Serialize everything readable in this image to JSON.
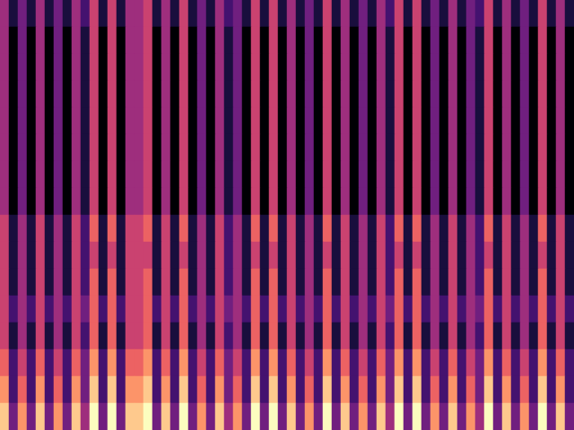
{
  "chart_data": {
    "type": "heatmap",
    "color": "magma",
    "tick_labels": false,
    "grid": false,
    "cells": [
      [
        5,
        2,
        4,
        2,
        5,
        2,
        4,
        2,
        5,
        3,
        6,
        2,
        6,
        2,
        5,
        5,
        6,
        2,
        5,
        2,
        6,
        2,
        4,
        2,
        5,
        3,
        4,
        2,
        6,
        2,
        6,
        2,
        5,
        2,
        4,
        2,
        6,
        2,
        5,
        2,
        4,
        2,
        5,
        3,
        6,
        2,
        6,
        2,
        4,
        2,
        5,
        2,
        4,
        3,
        6,
        2,
        5,
        2,
        4,
        2,
        6,
        2,
        5,
        2
      ],
      [
        5,
        1,
        4,
        1,
        5,
        1,
        4,
        1,
        5,
        2,
        6,
        1,
        6,
        1,
        5,
        5,
        6,
        1,
        5,
        1,
        6,
        1,
        4,
        1,
        5,
        2,
        4,
        1,
        6,
        1,
        6,
        1,
        5,
        1,
        4,
        1,
        6,
        1,
        5,
        1,
        4,
        1,
        5,
        2,
        6,
        1,
        6,
        1,
        4,
        1,
        5,
        1,
        4,
        2,
        6,
        1,
        5,
        1,
        4,
        1,
        6,
        1,
        5,
        1
      ],
      [
        5,
        1,
        4,
        1,
        5,
        1,
        4,
        1,
        5,
        2,
        6,
        1,
        6,
        1,
        5,
        5,
        6,
        1,
        5,
        1,
        6,
        1,
        4,
        1,
        5,
        2,
        4,
        1,
        6,
        1,
        6,
        1,
        5,
        1,
        4,
        1,
        6,
        1,
        5,
        1,
        4,
        1,
        5,
        2,
        6,
        1,
        6,
        1,
        4,
        1,
        5,
        1,
        4,
        2,
        6,
        1,
        5,
        1,
        4,
        1,
        6,
        1,
        5,
        1
      ],
      [
        5,
        1,
        4,
        1,
        5,
        1,
        4,
        1,
        5,
        2,
        6,
        1,
        6,
        1,
        5,
        5,
        6,
        1,
        5,
        1,
        6,
        1,
        4,
        1,
        5,
        2,
        4,
        1,
        6,
        1,
        6,
        1,
        5,
        1,
        4,
        1,
        6,
        1,
        5,
        1,
        4,
        1,
        5,
        2,
        6,
        1,
        6,
        1,
        4,
        1,
        5,
        1,
        4,
        2,
        6,
        1,
        5,
        1,
        4,
        1,
        6,
        1,
        5,
        1
      ],
      [
        5,
        1,
        4,
        1,
        5,
        1,
        4,
        1,
        5,
        2,
        6,
        1,
        6,
        1,
        5,
        5,
        6,
        1,
        5,
        1,
        6,
        1,
        4,
        1,
        5,
        2,
        4,
        1,
        6,
        1,
        6,
        1,
        5,
        1,
        4,
        1,
        6,
        1,
        5,
        1,
        4,
        1,
        5,
        2,
        6,
        1,
        6,
        1,
        4,
        1,
        5,
        1,
        4,
        2,
        6,
        1,
        5,
        1,
        4,
        1,
        6,
        1,
        5,
        1
      ],
      [
        5,
        1,
        4,
        1,
        5,
        1,
        4,
        1,
        5,
        2,
        6,
        1,
        6,
        1,
        5,
        5,
        6,
        1,
        5,
        1,
        6,
        1,
        4,
        1,
        5,
        2,
        4,
        1,
        6,
        1,
        6,
        1,
        5,
        1,
        4,
        1,
        6,
        1,
        5,
        1,
        4,
        1,
        5,
        2,
        6,
        1,
        6,
        1,
        4,
        1,
        5,
        1,
        4,
        2,
        6,
        1,
        5,
        1,
        4,
        1,
        6,
        1,
        5,
        1
      ],
      [
        5,
        1,
        4,
        1,
        5,
        1,
        4,
        1,
        5,
        2,
        6,
        1,
        6,
        1,
        5,
        5,
        6,
        1,
        5,
        1,
        6,
        1,
        4,
        1,
        5,
        2,
        4,
        1,
        6,
        1,
        6,
        1,
        5,
        1,
        4,
        1,
        6,
        1,
        5,
        1,
        4,
        1,
        5,
        2,
        6,
        1,
        6,
        1,
        4,
        1,
        5,
        1,
        4,
        2,
        6,
        1,
        5,
        1,
        4,
        1,
        6,
        1,
        5,
        1
      ],
      [
        5,
        1,
        4,
        1,
        5,
        1,
        4,
        1,
        5,
        2,
        6,
        1,
        6,
        1,
        5,
        5,
        6,
        1,
        5,
        1,
        6,
        1,
        4,
        1,
        5,
        2,
        4,
        1,
        6,
        1,
        6,
        1,
        5,
        1,
        4,
        1,
        6,
        1,
        5,
        1,
        4,
        1,
        5,
        2,
        6,
        1,
        6,
        1,
        4,
        1,
        5,
        1,
        4,
        2,
        6,
        1,
        5,
        1,
        4,
        1,
        6,
        1,
        5,
        1
      ],
      [
        6,
        2,
        5,
        2,
        6,
        2,
        5,
        2,
        6,
        3,
        7,
        2,
        7,
        2,
        6,
        6,
        7,
        2,
        6,
        2,
        7,
        2,
        5,
        2,
        6,
        3,
        5,
        2,
        7,
        2,
        7,
        2,
        6,
        2,
        5,
        2,
        7,
        2,
        6,
        2,
        5,
        2,
        6,
        3,
        7,
        2,
        7,
        2,
        5,
        2,
        6,
        2,
        5,
        3,
        7,
        2,
        6,
        2,
        5,
        2,
        7,
        2,
        6,
        2
      ],
      [
        6,
        2,
        5,
        2,
        6,
        2,
        5,
        2,
        6,
        3,
        6,
        2,
        6,
        2,
        6,
        6,
        6,
        2,
        6,
        2,
        6,
        2,
        5,
        2,
        6,
        3,
        5,
        2,
        6,
        2,
        6,
        2,
        6,
        2,
        5,
        2,
        6,
        2,
        6,
        2,
        5,
        2,
        6,
        3,
        6,
        2,
        6,
        2,
        5,
        2,
        6,
        2,
        5,
        3,
        6,
        2,
        6,
        2,
        5,
        2,
        6,
        2,
        6,
        2
      ],
      [
        6,
        2,
        5,
        2,
        6,
        2,
        5,
        2,
        6,
        3,
        7,
        2,
        7,
        2,
        6,
        6,
        7,
        2,
        6,
        2,
        7,
        2,
        5,
        2,
        6,
        3,
        5,
        2,
        7,
        2,
        7,
        2,
        6,
        2,
        5,
        2,
        7,
        2,
        6,
        2,
        5,
        2,
        6,
        3,
        7,
        2,
        7,
        2,
        5,
        2,
        6,
        2,
        5,
        3,
        7,
        2,
        6,
        2,
        5,
        2,
        7,
        2,
        6,
        2
      ],
      [
        6,
        3,
        5,
        3,
        6,
        3,
        5,
        3,
        6,
        4,
        7,
        3,
        7,
        3,
        6,
        6,
        7,
        3,
        6,
        3,
        7,
        3,
        5,
        3,
        6,
        4,
        5,
        3,
        7,
        3,
        7,
        3,
        6,
        3,
        5,
        3,
        7,
        3,
        6,
        3,
        5,
        3,
        6,
        4,
        7,
        3,
        7,
        3,
        5,
        3,
        6,
        3,
        5,
        4,
        7,
        3,
        6,
        3,
        5,
        3,
        7,
        3,
        6,
        3
      ],
      [
        6,
        2,
        5,
        2,
        6,
        2,
        5,
        2,
        6,
        3,
        7,
        2,
        7,
        2,
        6,
        6,
        7,
        2,
        6,
        2,
        7,
        2,
        5,
        2,
        6,
        3,
        5,
        2,
        7,
        2,
        7,
        2,
        6,
        2,
        5,
        2,
        7,
        2,
        6,
        2,
        5,
        2,
        6,
        3,
        7,
        2,
        7,
        2,
        5,
        2,
        6,
        2,
        5,
        3,
        7,
        2,
        6,
        2,
        5,
        2,
        7,
        2,
        6,
        2
      ],
      [
        7,
        3,
        6,
        3,
        7,
        3,
        6,
        3,
        7,
        4,
        8,
        3,
        8,
        3,
        7,
        7,
        8,
        3,
        7,
        3,
        8,
        3,
        6,
        3,
        7,
        4,
        6,
        3,
        8,
        3,
        8,
        3,
        7,
        3,
        6,
        3,
        8,
        3,
        7,
        3,
        6,
        3,
        7,
        4,
        8,
        3,
        8,
        3,
        6,
        3,
        7,
        3,
        6,
        4,
        8,
        3,
        7,
        3,
        6,
        3,
        8,
        3,
        7,
        3
      ],
      [
        8,
        3,
        7,
        3,
        8,
        3,
        7,
        3,
        8,
        4,
        9,
        3,
        9,
        3,
        8,
        8,
        9,
        3,
        8,
        3,
        9,
        3,
        7,
        3,
        8,
        4,
        7,
        3,
        9,
        3,
        9,
        3,
        8,
        3,
        7,
        3,
        9,
        3,
        8,
        3,
        7,
        3,
        8,
        4,
        9,
        3,
        9,
        3,
        7,
        3,
        8,
        3,
        7,
        4,
        9,
        3,
        8,
        3,
        7,
        3,
        9,
        3,
        8,
        3
      ],
      [
        9,
        4,
        8,
        4,
        9,
        4,
        8,
        4,
        9,
        5,
        10,
        4,
        10,
        4,
        9,
        9,
        10,
        4,
        9,
        4,
        10,
        4,
        8,
        4,
        9,
        5,
        8,
        4,
        10,
        4,
        10,
        4,
        9,
        4,
        8,
        4,
        10,
        4,
        9,
        4,
        8,
        4,
        9,
        5,
        10,
        4,
        10,
        4,
        8,
        4,
        9,
        4,
        8,
        5,
        10,
        4,
        9,
        4,
        8,
        4,
        10,
        4,
        9,
        4
      ]
    ]
  }
}
